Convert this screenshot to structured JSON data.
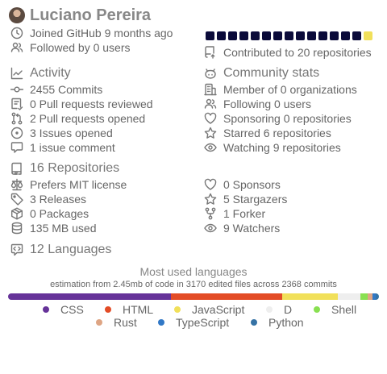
{
  "profile": {
    "name": "Luciano Pereira",
    "joined": "Joined GitHub 9 months ago",
    "followed": "Followed by 0 users",
    "contributed": "Contributed to 20 repositories"
  },
  "calendar": {
    "days": 15,
    "highlighted_index": 14,
    "highlight_color": "#f1e05a",
    "base_color": "#0b0b3a"
  },
  "activity": {
    "title": "Activity",
    "items": [
      "2455 Commits",
      "0 Pull requests reviewed",
      "2 Pull requests opened",
      "3 Issues opened",
      "1 issue comment"
    ]
  },
  "community": {
    "title": "Community stats",
    "items": [
      "Member of 0 organizations",
      "Following 0 users",
      "Sponsoring 0 repositories",
      "Starred 6 repositories",
      "Watching 9 repositories"
    ]
  },
  "repositories": {
    "title": "16 Repositories",
    "items": [
      "Prefers MIT license",
      "3 Releases",
      "0 Packages",
      "135 MB used"
    ],
    "stats": [
      "0 Sponsors",
      "5 Stargazers",
      "1 Forker",
      "9 Watchers"
    ]
  },
  "languages": {
    "title": "12 Languages",
    "header": "Most used languages",
    "estimation": "estimation from 2.45mb of code in 3170 edited files across 2368 commits",
    "list": [
      {
        "name": "CSS",
        "color": "#663399",
        "share": 44
      },
      {
        "name": "HTML",
        "color": "#e34c26",
        "share": 30
      },
      {
        "name": "JavaScript",
        "color": "#f1e05a",
        "share": 15
      },
      {
        "name": "D",
        "color": "#eeeeee",
        "share": 6
      },
      {
        "name": "Shell",
        "color": "#89e051",
        "share": 2
      },
      {
        "name": "Rust",
        "color": "#dea584",
        "share": 1.3
      },
      {
        "name": "TypeScript",
        "color": "#3178c6",
        "share": 0.8
      },
      {
        "name": "Python",
        "color": "#3572a5",
        "share": 0.9
      }
    ]
  }
}
